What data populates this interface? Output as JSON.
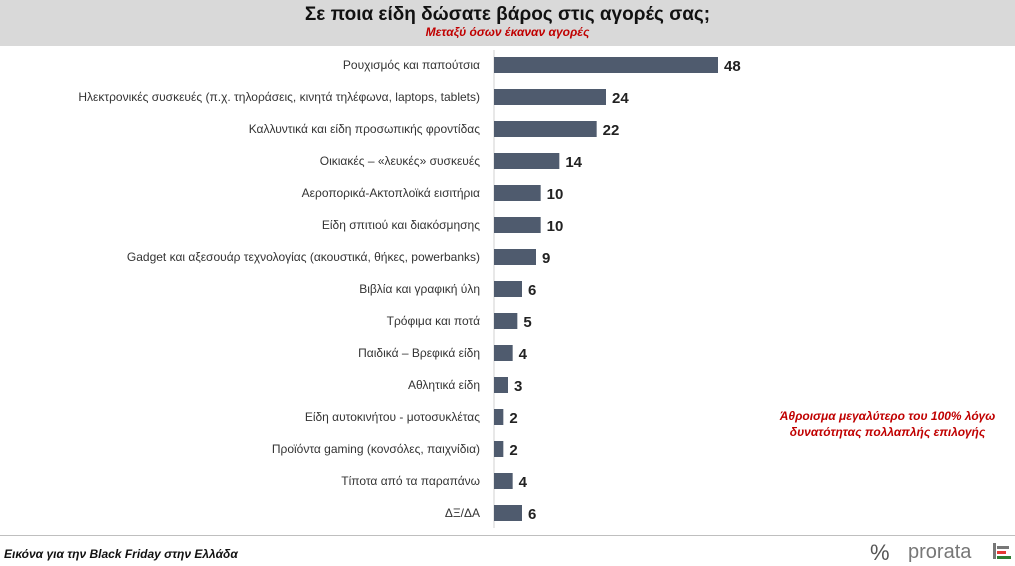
{
  "header": {
    "title": "Σε ποια είδη δώσατε βάρος στις αγορές σας;",
    "subtitle": "Μεταξύ όσων έκαναν αγορές"
  },
  "note": {
    "line1": "Άθροισμα μεγαλύτερο του 100% λόγω",
    "line2": "δυνατότητας πολλαπλής επιλογής"
  },
  "footer": {
    "caption": "Εικόνα για την Black Friday στην Ελλάδα"
  },
  "logo": {
    "symbol": "%",
    "text": "prorata"
  },
  "colors": {
    "bar": "#4f5b6e",
    "accent_red": "#c00000",
    "header_bg": "#d9d9d9"
  },
  "chart_data": {
    "type": "bar",
    "orientation": "horizontal",
    "title": "Σε ποια είδη δώσατε βάρος στις αγορές σας;",
    "subtitle": "Μεταξύ όσων έκαναν αγορές",
    "xlabel": "",
    "ylabel": "",
    "xlim": [
      0,
      48
    ],
    "grid": false,
    "categories": [
      "Ρουχισμός και παπούτσια",
      "Ηλεκτρονικές συσκευές (π.χ. τηλοράσεις, κινητά τηλέφωνα, laptops, tablets)",
      "Καλλυντικά και είδη προσωπικής φροντίδας",
      "Οικιακές – «λευκές» συσκευές",
      "Αεροπορικά-Ακτοπλοϊκά εισιτήρια",
      "Είδη σπιτιού και διακόσμησης",
      "Gadget και αξεσουάρ τεχνολογίας (ακουστικά, θήκες, powerbanks)",
      "Βιβλία και γραφική ύλη",
      "Τρόφιμα και ποτά",
      "Παιδικά – Βρεφικά είδη",
      "Αθλητικά είδη",
      "Είδη αυτοκινήτου - μοτοσυκλέτας",
      "Προϊόντα gaming (κονσόλες, παιχνίδια)",
      "Τίποτα από τα παραπάνω",
      "ΔΞ/ΔΑ"
    ],
    "values": [
      48,
      24,
      22,
      14,
      10,
      10,
      9,
      6,
      5,
      4,
      3,
      2,
      2,
      4,
      6
    ]
  }
}
